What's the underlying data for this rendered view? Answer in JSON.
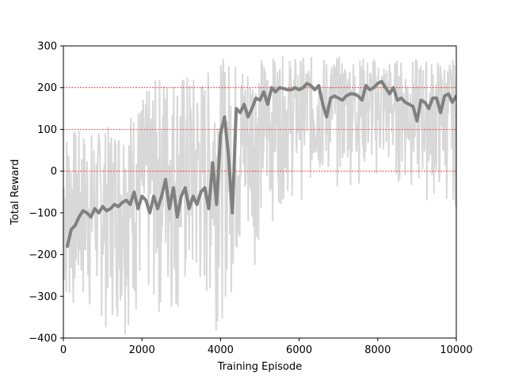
{
  "chart_data": {
    "type": "line",
    "xlabel": "Training Episode",
    "ylabel": "Total Reward",
    "xlim": [
      0,
      10000
    ],
    "ylim": [
      -400,
      300
    ],
    "xticks": [
      0,
      2000,
      4000,
      6000,
      8000,
      10000
    ],
    "yticks": [
      -400,
      -300,
      -200,
      -100,
      0,
      100,
      200,
      300
    ],
    "reference_lines": [
      {
        "y": 0,
        "color": "#ff0000",
        "style": "dashed"
      },
      {
        "y": 100,
        "color": "#ff0000",
        "style": "dashed"
      },
      {
        "y": 200,
        "color": "#ff0000",
        "style": "dashed"
      }
    ],
    "grid": false,
    "series": [
      {
        "role": "raw episode reward",
        "color": "#d8d8d8",
        "band": {
          "x": [
            0,
            500,
            1000,
            1500,
            2000,
            2500,
            3000,
            3500,
            4000,
            4500,
            5000,
            5500,
            6000,
            6500,
            7000,
            7500,
            8000,
            8500,
            9000,
            9500,
            10000
          ],
          "low": [
            -400,
            -400,
            -400,
            -400,
            -400,
            -400,
            -400,
            -400,
            -380,
            -300,
            -200,
            -100,
            -80,
            -60,
            -50,
            -40,
            -40,
            -50,
            -80,
            -100,
            -100
          ],
          "high": [
            110,
            100,
            100,
            130,
            180,
            240,
            240,
            230,
            270,
            270,
            275,
            275,
            275,
            275,
            275,
            275,
            275,
            270,
            270,
            270,
            270
          ]
        }
      },
      {
        "role": "moving average",
        "color": "#808080",
        "x": [
          100,
          200,
          300,
          400,
          500,
          600,
          700,
          800,
          900,
          1000,
          1100,
          1200,
          1300,
          1400,
          1500,
          1600,
          1700,
          1800,
          1900,
          2000,
          2100,
          2200,
          2300,
          2400,
          2500,
          2600,
          2700,
          2800,
          2900,
          3000,
          3100,
          3200,
          3300,
          3400,
          3500,
          3600,
          3700,
          3800,
          3900,
          4000,
          4100,
          4200,
          4300,
          4400,
          4500,
          4600,
          4700,
          4800,
          4900,
          5000,
          5100,
          5200,
          5300,
          5400,
          5500,
          5600,
          5700,
          5800,
          5900,
          6000,
          6100,
          6200,
          6300,
          6400,
          6500,
          6600,
          6700,
          6800,
          6900,
          7000,
          7100,
          7200,
          7300,
          7400,
          7500,
          7600,
          7700,
          7800,
          7900,
          8000,
          8100,
          8200,
          8300,
          8400,
          8500,
          8600,
          8700,
          8800,
          8900,
          9000,
          9100,
          9200,
          9300,
          9400,
          9500,
          9600,
          9700,
          9800,
          9900,
          10000
        ],
        "values": [
          -180,
          -140,
          -130,
          -110,
          -95,
          -100,
          -110,
          -90,
          -100,
          -85,
          -95,
          -90,
          -80,
          -85,
          -75,
          -70,
          -80,
          -50,
          -90,
          -60,
          -70,
          -100,
          -60,
          -90,
          -60,
          -20,
          -90,
          -40,
          -110,
          -60,
          -40,
          -90,
          -60,
          -80,
          -50,
          -40,
          -90,
          20,
          -80,
          90,
          130,
          40,
          -100,
          150,
          140,
          160,
          130,
          150,
          175,
          170,
          190,
          160,
          200,
          190,
          200,
          198,
          195,
          195,
          200,
          195,
          200,
          210,
          205,
          195,
          205,
          160,
          130,
          175,
          180,
          175,
          170,
          180,
          185,
          185,
          180,
          170,
          205,
          195,
          200,
          210,
          215,
          200,
          185,
          200,
          170,
          175,
          165,
          160,
          155,
          120,
          170,
          165,
          150,
          175,
          175,
          140,
          180,
          185,
          165,
          180
        ]
      }
    ]
  }
}
